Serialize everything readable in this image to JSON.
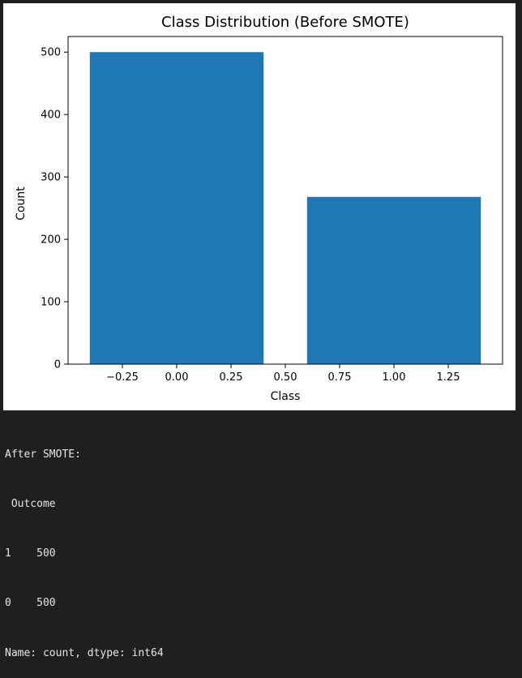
{
  "chart_data": {
    "type": "bar",
    "title": "Class Distribution (Before SMOTE)",
    "xlabel": "Class",
    "ylabel": "Count",
    "x": [
      0,
      1
    ],
    "values": [
      500,
      268
    ],
    "bar_width": 0.8,
    "xlim": [
      -0.5,
      1.5
    ],
    "ylim": [
      0,
      525
    ],
    "xticks": [
      -0.25,
      0.0,
      0.25,
      0.5,
      0.75,
      1.0,
      1.25
    ],
    "xtick_labels": [
      "−0.25",
      "0.00",
      "0.25",
      "0.50",
      "0.75",
      "1.00",
      "1.25"
    ],
    "yticks": [
      0,
      100,
      200,
      300,
      400,
      500
    ],
    "ytick_labels": [
      "0",
      "100",
      "200",
      "300",
      "400",
      "500"
    ],
    "grid": false,
    "bar_color": "#1f77b4"
  },
  "console": {
    "lines": [
      "After SMOTE:",
      " Outcome",
      "1    500",
      "0    500",
      "Name: count, dtype: int64"
    ]
  }
}
